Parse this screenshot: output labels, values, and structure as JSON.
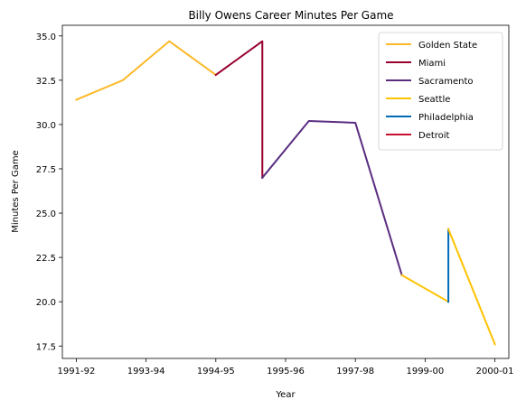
{
  "chart_data": {
    "type": "line",
    "title": "Billy Owens Career Minutes Per Game",
    "xlabel": "Year",
    "ylabel": "Minutes Per Game",
    "xlim": [
      -0.3,
      9.3
    ],
    "ylim": [
      16.8,
      35.6
    ],
    "x_ticks": [
      {
        "x": 0,
        "label": "1991-92"
      },
      {
        "x": 1.5,
        "label": "1993-94"
      },
      {
        "x": 3,
        "label": "1994-95"
      },
      {
        "x": 4.5,
        "label": "1995-96"
      },
      {
        "x": 6,
        "label": "1997-98"
      },
      {
        "x": 7.5,
        "label": "1999-00"
      },
      {
        "x": 9,
        "label": "2000-01"
      }
    ],
    "y_ticks": [
      17.5,
      20.0,
      22.5,
      25.0,
      27.5,
      30.0,
      32.5,
      35.0
    ],
    "y_tick_labels": [
      "17.5",
      "20.0",
      "22.5",
      "25.0",
      "27.5",
      "30.0",
      "32.5",
      "35.0"
    ],
    "grid": false,
    "legend": "top-right",
    "series": [
      {
        "name": "Golden State",
        "color": "#FDB927",
        "points": [
          [
            0,
            31.4
          ],
          [
            1,
            32.5
          ],
          [
            2,
            34.7
          ],
          [
            3,
            32.8
          ]
        ]
      },
      {
        "name": "Miami",
        "color": "#98002E",
        "points": [
          [
            3,
            32.8
          ],
          [
            4,
            34.7
          ],
          [
            4,
            27.0
          ]
        ]
      },
      {
        "name": "Sacramento",
        "color": "#5A2D81",
        "points": [
          [
            4,
            27.0
          ],
          [
            5,
            30.2
          ],
          [
            6,
            30.1
          ],
          [
            7,
            21.5
          ]
        ]
      },
      {
        "name": "Seattle",
        "color": "#FFC200",
        "points": [
          [
            7,
            21.5
          ],
          [
            8,
            20.0
          ]
        ]
      },
      {
        "name": "Philadelphia",
        "color": "#006BB6",
        "points": [
          [
            8,
            20.0
          ],
          [
            8,
            24.1
          ]
        ]
      },
      {
        "name": "Seattle",
        "color": "#FFC200",
        "points": [
          [
            8,
            24.1
          ],
          [
            9,
            17.6
          ]
        ]
      }
    ],
    "legend_entries": [
      {
        "name": "Golden State",
        "color": "#FDB927"
      },
      {
        "name": "Miami",
        "color": "#98002E"
      },
      {
        "name": "Sacramento",
        "color": "#5A2D81"
      },
      {
        "name": "Seattle",
        "color": "#FFC200"
      },
      {
        "name": "Philadelphia",
        "color": "#006BB6"
      },
      {
        "name": "Detroit",
        "color": "#C8102E"
      }
    ]
  }
}
